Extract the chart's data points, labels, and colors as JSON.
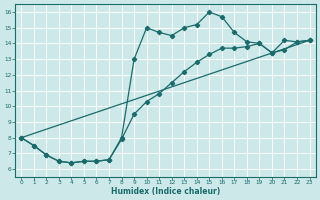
{
  "xlabel": "Humidex (Indice chaleur)",
  "background_color": "#cce8e8",
  "line_color": "#1a6b6b",
  "xlim": [
    -0.5,
    23.5
  ],
  "ylim": [
    5.5,
    16.5
  ],
  "xticks": [
    0,
    1,
    2,
    3,
    4,
    5,
    6,
    7,
    8,
    9,
    10,
    11,
    12,
    13,
    14,
    15,
    16,
    17,
    18,
    19,
    20,
    21,
    22,
    23
  ],
  "yticks": [
    6,
    7,
    8,
    9,
    10,
    11,
    12,
    13,
    14,
    15,
    16
  ],
  "curve1_x": [
    0,
    1,
    2,
    3,
    4,
    5,
    6,
    7,
    8,
    9,
    10,
    11,
    12,
    13,
    14,
    15,
    16,
    17,
    18,
    19,
    20,
    21,
    22,
    23
  ],
  "curve1_y": [
    8.0,
    7.5,
    6.9,
    6.5,
    6.4,
    6.5,
    6.5,
    6.6,
    8.0,
    13.0,
    15.0,
    14.7,
    14.5,
    15.0,
    15.2,
    16.0,
    15.7,
    14.7,
    14.1,
    14.0,
    13.4,
    14.2,
    14.1,
    14.2
  ],
  "curve2_x": [
    0,
    23
  ],
  "curve2_y": [
    8.0,
    14.2
  ],
  "curve3_x": [
    0,
    1,
    2,
    3,
    4,
    5,
    6,
    7,
    8,
    9,
    10,
    11,
    12,
    13,
    14,
    15,
    16,
    17,
    18,
    19,
    20,
    21,
    22,
    23
  ],
  "curve3_y": [
    8.0,
    7.5,
    6.9,
    6.5,
    6.4,
    6.5,
    6.5,
    6.6,
    7.9,
    9.5,
    10.3,
    10.8,
    11.5,
    12.2,
    12.8,
    13.3,
    13.7,
    13.7,
    13.8,
    14.0,
    13.4,
    13.6,
    14.1,
    14.2
  ]
}
